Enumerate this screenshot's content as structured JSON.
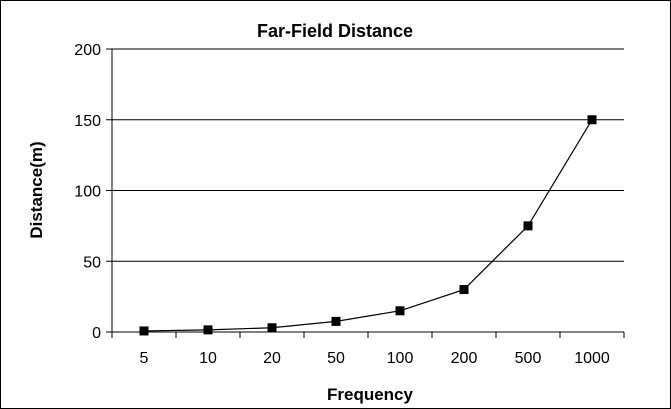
{
  "chart_data": {
    "type": "line",
    "title": "Far-Field Distance",
    "xlabel": "Frequency",
    "ylabel": "Distance(m)",
    "categories": [
      "5",
      "10",
      "20",
      "50",
      "100",
      "200",
      "500",
      "1000"
    ],
    "series": [
      {
        "values": [
          0.75,
          1.5,
          3,
          7.5,
          15,
          30,
          75,
          150
        ]
      }
    ],
    "ylim": [
      0,
      200
    ],
    "yticks": [
      "0",
      "50",
      "100",
      "150",
      "200"
    ],
    "grid": "horizontal",
    "legend": "none",
    "colors": {
      "line": "#000000",
      "marker": "#000000",
      "grid": "#000000"
    }
  }
}
